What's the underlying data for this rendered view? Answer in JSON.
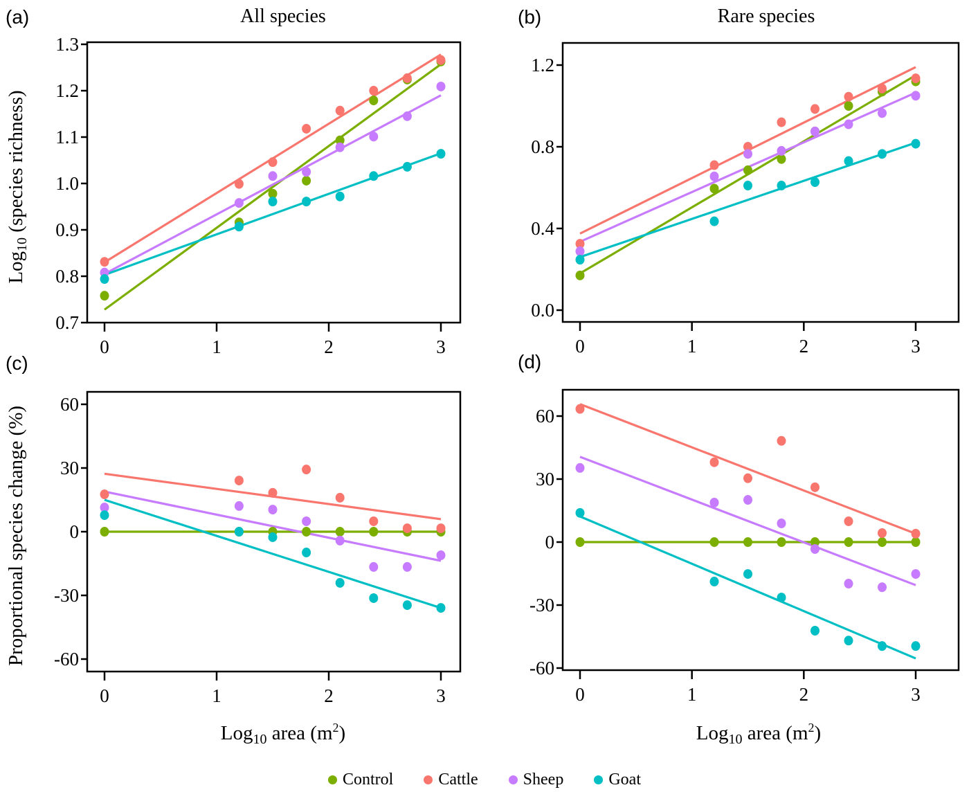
{
  "legend": {
    "items": [
      {
        "name": "Control",
        "color": "#7CAE00"
      },
      {
        "name": "Cattle",
        "color": "#F8766D"
      },
      {
        "name": "Sheep",
        "color": "#C77CFF"
      },
      {
        "name": "Goat",
        "color": "#00BFC4"
      }
    ]
  },
  "chart_data": [
    {
      "panel": "(a)",
      "type": "scatter",
      "title": "All species",
      "xlabel": "",
      "ylabel": "Log10 (species richness)",
      "x": [
        0,
        1.2,
        1.5,
        1.8,
        2.1,
        2.4,
        2.7,
        3.0
      ],
      "xticks": [
        "0",
        "1",
        "2",
        "3"
      ],
      "yticks": [
        "0.7",
        "0.8",
        "0.9",
        "1.0",
        "1.1",
        "1.2",
        "1.3"
      ],
      "ylim": [
        0.7,
        1.3
      ],
      "xlim": [
        -0.15,
        3.15
      ],
      "series": [
        {
          "name": "Control",
          "values": [
            0.758,
            0.916,
            0.978,
            1.006,
            1.093,
            1.179,
            1.224,
            1.263
          ],
          "fit": [
            0.728,
            1.257
          ]
        },
        {
          "name": "Cattle",
          "values": [
            0.831,
            0.999,
            1.046,
            1.118,
            1.157,
            1.2,
            1.227,
            1.266
          ],
          "fit": [
            0.83,
            1.278
          ]
        },
        {
          "name": "Sheep",
          "values": [
            0.808,
            0.958,
            1.016,
            1.025,
            1.078,
            1.101,
            1.145,
            1.209
          ],
          "fit": [
            0.805,
            1.19
          ]
        },
        {
          "name": "Goat",
          "values": [
            0.794,
            0.907,
            0.961,
            0.961,
            0.972,
            1.016,
            1.036,
            1.064
          ],
          "fit": [
            0.803,
            1.065
          ]
        }
      ]
    },
    {
      "panel": "(b)",
      "type": "scatter",
      "title": "Rare species",
      "xlabel": "",
      "ylabel": "",
      "x": [
        0,
        1.2,
        1.5,
        1.8,
        2.1,
        2.4,
        2.7,
        3.0
      ],
      "xticks": [
        "0",
        "1",
        "2",
        "3"
      ],
      "yticks": [
        "0.0",
        "0.4",
        "0.8",
        "1.2"
      ],
      "ylim": [
        -0.05,
        1.3
      ],
      "xlim": [
        -0.15,
        3.4
      ],
      "series": [
        {
          "name": "Control",
          "values": [
            0.17,
            0.595,
            0.685,
            0.74,
            0.875,
            1.0,
            1.07,
            1.12
          ],
          "fit": [
            0.18,
            1.15
          ]
        },
        {
          "name": "Cattle",
          "values": [
            0.325,
            0.71,
            0.8,
            0.92,
            0.985,
            1.045,
            1.085,
            1.135
          ],
          "fit": [
            0.375,
            1.19
          ]
        },
        {
          "name": "Sheep",
          "values": [
            0.288,
            0.655,
            0.765,
            0.78,
            0.875,
            0.91,
            0.965,
            1.05
          ],
          "fit": [
            0.335,
            1.065
          ]
        },
        {
          "name": "Goat",
          "values": [
            0.247,
            0.435,
            0.61,
            0.61,
            0.627,
            0.73,
            0.765,
            0.815
          ],
          "fit": [
            0.26,
            0.82
          ]
        }
      ]
    },
    {
      "panel": "(c)",
      "type": "scatter",
      "title": "",
      "xlabel": "Log10 area (m2)",
      "ylabel": "Proportional species change (%)",
      "x": [
        0,
        1.2,
        1.5,
        1.8,
        2.1,
        2.4,
        2.7,
        3.0
      ],
      "xticks": [
        "0",
        "1",
        "2",
        "3"
      ],
      "yticks": [
        "-60",
        "-30",
        "0",
        "30",
        "60"
      ],
      "ylim": [
        -66,
        66
      ],
      "xlim": [
        -0.15,
        3.15
      ],
      "series": [
        {
          "name": "Control",
          "values": [
            0,
            0,
            0,
            0,
            0,
            0,
            0,
            0
          ],
          "fit": [
            0,
            0
          ]
        },
        {
          "name": "Cattle",
          "values": [
            17.6,
            24.1,
            18.3,
            29.3,
            16.0,
            4.9,
            1.6,
            1.6
          ],
          "fit": [
            27.3,
            5.9
          ]
        },
        {
          "name": "Sheep",
          "values": [
            11.4,
            12.1,
            10.4,
            4.9,
            -4.2,
            -16.6,
            -16.6,
            -11.1
          ],
          "fit": [
            18.9,
            -13.7
          ]
        },
        {
          "name": "Goat",
          "values": [
            7.8,
            0,
            -2.6,
            -9.8,
            -24.1,
            -31.3,
            -34.6,
            -35.9
          ],
          "fit": [
            15.0,
            -35.9
          ]
        }
      ]
    },
    {
      "panel": "(d)",
      "type": "scatter",
      "title": "",
      "xlabel": "Log10 area (m2)",
      "ylabel": "",
      "x": [
        0,
        1.2,
        1.5,
        1.8,
        2.1,
        2.4,
        2.7,
        3.0
      ],
      "xticks": [
        "0",
        "1",
        "2",
        "3"
      ],
      "yticks": [
        "-60",
        "-30",
        "0",
        "30",
        "60"
      ],
      "ylim": [
        -62,
        72
      ],
      "xlim": [
        -0.15,
        3.4
      ],
      "series": [
        {
          "name": "Control",
          "values": [
            0,
            0,
            0,
            0,
            0,
            0,
            0,
            0
          ],
          "fit": [
            0,
            0
          ]
        },
        {
          "name": "Cattle",
          "values": [
            63.4,
            38.0,
            30.4,
            48.2,
            26.1,
            9.9,
            4.3,
            4.0
          ],
          "fit": [
            65.7,
            4.0
          ]
        },
        {
          "name": "Sheep",
          "values": [
            35.3,
            18.8,
            20.1,
            8.9,
            -3.3,
            -19.8,
            -21.5,
            -15.2
          ],
          "fit": [
            40.6,
            -20.5
          ]
        },
        {
          "name": "Goat",
          "values": [
            13.9,
            -18.8,
            -15.2,
            -26.4,
            -42.2,
            -46.9,
            -49.5,
            -49.5
          ],
          "fit": [
            12.2,
            -55.4
          ]
        }
      ]
    }
  ],
  "labels": {
    "panel_a": "(a)",
    "panel_b": "(b)",
    "panel_c": "(c)",
    "panel_d": "(d)",
    "title_a": "All species",
    "title_b": "Rare species",
    "ylabel_top_prefix": "Log",
    "ylabel_top_sub": "10",
    "ylabel_top_rest": " (species richness)",
    "ylabel_bottom": "Proportional species change (%)",
    "xlabel_prefix": "Log",
    "xlabel_sub": "10",
    "xlabel_mid": " area (m",
    "xlabel_sup": "2",
    "xlabel_end": ")"
  }
}
